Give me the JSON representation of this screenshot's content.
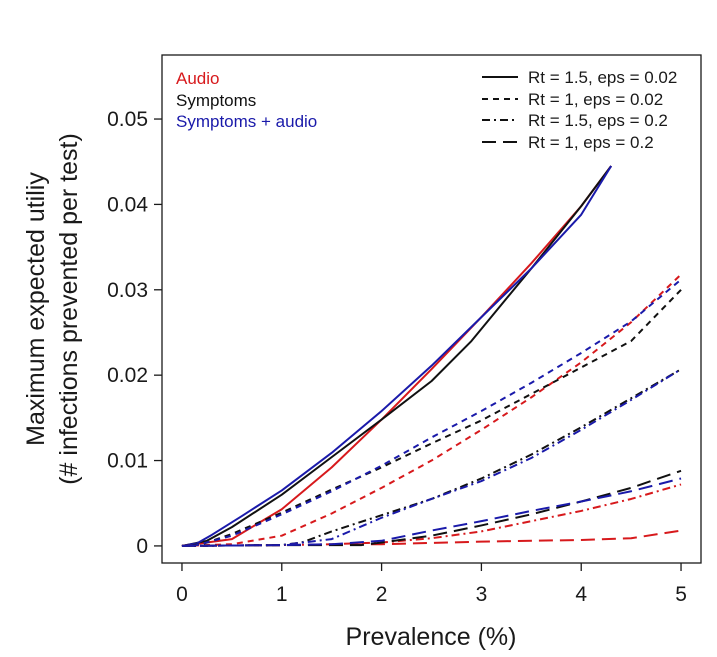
{
  "chart_data": {
    "type": "line",
    "xlabel": "Prevalence (%)",
    "ylabel_lines": [
      "Maximum expected utiliy",
      "(# infections prevented per test)"
    ],
    "xlim": [
      -0.2,
      5.2
    ],
    "ylim": [
      -0.002,
      0.0575
    ],
    "xticks": [
      0,
      1,
      2,
      3,
      4,
      5
    ],
    "xtick_labels": [
      "0",
      "1",
      "2",
      "3",
      "4",
      "5"
    ],
    "yticks": [
      0,
      0.01,
      0.02,
      0.03,
      0.04,
      0.05
    ],
    "ytick_labels": [
      "0",
      "0.01",
      "0.02",
      "0.03",
      "0.04",
      "0.05"
    ],
    "grid": false,
    "color_legend": {
      "position": "top-left",
      "entries": [
        {
          "label": "Audio",
          "color": "#d7191c"
        },
        {
          "label": "Symptoms",
          "color": "#111111"
        },
        {
          "label": "Symptoms + audio",
          "color": "#1a1aaa"
        }
      ]
    },
    "style_legend": {
      "position": "top-right",
      "entries": [
        {
          "label": "Rt = 1.5, eps = 0.02",
          "dash": "solid"
        },
        {
          "label": "Rt = 1, eps = 0.02",
          "dash": "short-dash"
        },
        {
          "label": "Rt = 1.5, eps = 0.2",
          "dash": "dash-dot"
        },
        {
          "label": "Rt = 1, eps = 0.2",
          "dash": "long-dash"
        }
      ]
    },
    "series": [
      {
        "name": "Audio | Rt = 1.5, eps = 0.02",
        "color": "#d7191c",
        "dash": "solid",
        "x": [
          0,
          0.5,
          1,
          1.5,
          2,
          2.5,
          3,
          3.5,
          4,
          4.3
        ],
        "y": [
          0,
          0.0008,
          0.0043,
          0.0092,
          0.0148,
          0.0207,
          0.0268,
          0.0331,
          0.0398,
          0.0445
        ]
      },
      {
        "name": "Symptoms | Rt = 1.5, eps = 0.02",
        "color": "#111111",
        "dash": "solid",
        "x": [
          0,
          0.25,
          0.5,
          1,
          1.5,
          2,
          2.5,
          2.9,
          3.5,
          4,
          4.3
        ],
        "y": [
          0,
          0.0006,
          0.0022,
          0.006,
          0.0104,
          0.0148,
          0.0193,
          0.024,
          0.0325,
          0.0398,
          0.0445
        ]
      },
      {
        "name": "Symptoms + audio | Rt = 1.5, eps = 0.02",
        "color": "#1a1aaa",
        "dash": "solid",
        "x": [
          0,
          0.15,
          0.3,
          0.6,
          1,
          1.5,
          2,
          2.5,
          3,
          3.5,
          4,
          4.3
        ],
        "y": [
          0,
          0.0003,
          0.0013,
          0.0035,
          0.0065,
          0.0109,
          0.0158,
          0.0211,
          0.0268,
          0.0325,
          0.0388,
          0.0445
        ]
      },
      {
        "name": "Audio | Rt = 1, eps = 0.02",
        "color": "#d7191c",
        "dash": "short-dash",
        "x": [
          0,
          0.5,
          1,
          1.5,
          2,
          2.5,
          3,
          3.5,
          4,
          4.5,
          5
        ],
        "y": [
          0,
          0.0002,
          0.0012,
          0.0038,
          0.0068,
          0.01,
          0.0136,
          0.0174,
          0.0215,
          0.0262,
          0.0318
        ]
      },
      {
        "name": "Symptoms | Rt = 1, eps = 0.02",
        "color": "#111111",
        "dash": "short-dash",
        "x": [
          0,
          0.2,
          0.5,
          1,
          1.5,
          2,
          2.5,
          3,
          3.5,
          4,
          4.5,
          5
        ],
        "y": [
          0,
          0.0002,
          0.0014,
          0.0039,
          0.0066,
          0.0092,
          0.012,
          0.0147,
          0.0178,
          0.0209,
          0.024,
          0.03
        ]
      },
      {
        "name": "Symptoms + audio | Rt = 1, eps = 0.02",
        "color": "#1a1aaa",
        "dash": "short-dash",
        "x": [
          0,
          0.15,
          0.5,
          1,
          1.5,
          2,
          2.5,
          3,
          3.5,
          4,
          4.5,
          5
        ],
        "y": [
          0,
          0.0001,
          0.0012,
          0.0037,
          0.0064,
          0.0094,
          0.0127,
          0.0158,
          0.0191,
          0.0226,
          0.0263,
          0.0312
        ]
      },
      {
        "name": "Audio | Rt = 1.5, eps = 0.2",
        "color": "#d7191c",
        "dash": "dash-dot",
        "x": [
          0,
          1,
          1.5,
          2,
          2.5,
          3,
          3.5,
          4,
          4.5,
          5
        ],
        "y": [
          0,
          0.0001,
          0.0002,
          0.0004,
          0.0009,
          0.0017,
          0.0029,
          0.0041,
          0.0055,
          0.0072
        ]
      },
      {
        "name": "Symptoms | Rt = 1.5, eps = 0.2",
        "color": "#111111",
        "dash": "dash-dot",
        "x": [
          0,
          1,
          1.2,
          1.5,
          2,
          2.5,
          3,
          3.5,
          4,
          4.5,
          5
        ],
        "y": [
          0,
          0.0001,
          0.0004,
          0.0017,
          0.0036,
          0.0055,
          0.0079,
          0.0107,
          0.0139,
          0.0173,
          0.0207
        ]
      },
      {
        "name": "Symptoms + audio | Rt = 1.5, eps = 0.2",
        "color": "#1a1aaa",
        "dash": "dash-dot",
        "x": [
          0,
          1,
          1.5,
          2,
          2.5,
          3,
          3.5,
          4,
          4.5,
          5
        ],
        "y": [
          0,
          0.0001,
          0.0008,
          0.0033,
          0.0055,
          0.0076,
          0.0103,
          0.0136,
          0.0171,
          0.0207
        ]
      },
      {
        "name": "Audio | Rt = 1, eps = 0.2",
        "color": "#d7191c",
        "dash": "long-dash",
        "x": [
          0,
          1,
          2,
          3,
          4,
          4.5,
          5
        ],
        "y": [
          0,
          0.0001,
          0.0002,
          0.0005,
          0.0007,
          0.0009,
          0.0018
        ]
      },
      {
        "name": "Symptoms | Rt = 1, eps = 0.2",
        "color": "#111111",
        "dash": "long-dash",
        "x": [
          0,
          1,
          1.8,
          2,
          2.5,
          3,
          3.5,
          4,
          4.5,
          5
        ],
        "y": [
          0,
          0.0001,
          0.0001,
          0.0004,
          0.0012,
          0.0024,
          0.0037,
          0.0052,
          0.0068,
          0.0088
        ]
      },
      {
        "name": "Symptoms + audio | Rt = 1, eps = 0.2",
        "color": "#1a1aaa",
        "dash": "long-dash",
        "x": [
          0,
          1,
          1.5,
          2,
          2.5,
          3,
          3.5,
          4,
          4.5,
          5
        ],
        "y": [
          0,
          0.0001,
          0.0002,
          0.0006,
          0.0018,
          0.0029,
          0.0041,
          0.0052,
          0.0064,
          0.0079
        ]
      }
    ]
  }
}
